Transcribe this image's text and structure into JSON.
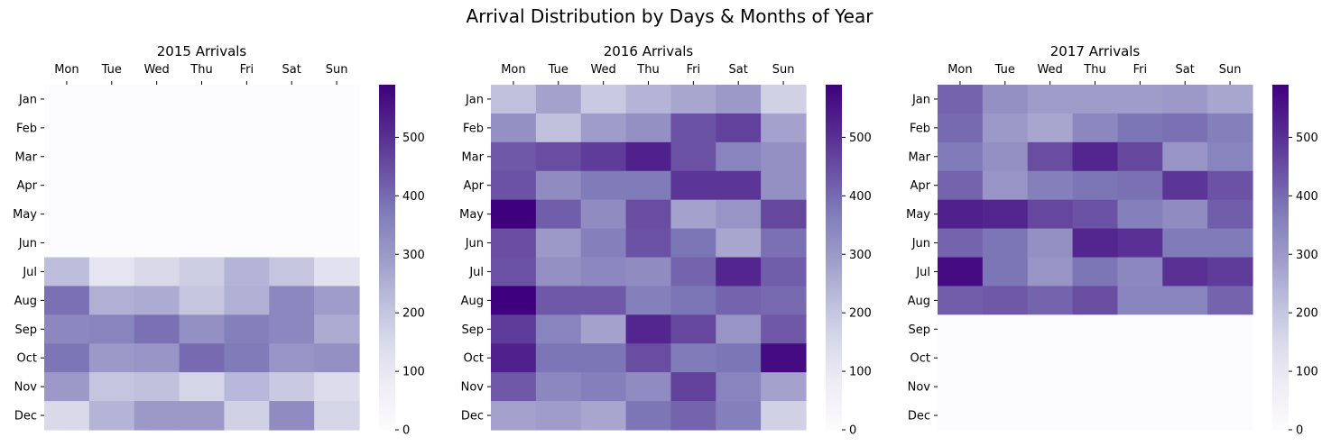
{
  "figure": {
    "suptitle": "Arrival Distribution by Days & Months of Year"
  },
  "colors": {
    "colormap": "Purples",
    "cmap_low": "#fcfbfd",
    "cmap_high": "#3f007d"
  },
  "chart_data": [
    {
      "type": "heatmap",
      "title": "2015 Arrivals",
      "x_categories": [
        "Mon",
        "Tue",
        "Wed",
        "Thu",
        "Fri",
        "Sat",
        "Sun"
      ],
      "y_categories": [
        "Jan",
        "Feb",
        "Mar",
        "Apr",
        "May",
        "Jun",
        "Jul",
        "Aug",
        "Sep",
        "Oct",
        "Nov",
        "Dec"
      ],
      "values": [
        [
          0,
          0,
          0,
          0,
          0,
          0,
          0
        ],
        [
          0,
          0,
          0,
          0,
          0,
          0,
          0
        ],
        [
          0,
          0,
          0,
          0,
          0,
          0,
          0
        ],
        [
          0,
          0,
          0,
          0,
          0,
          0,
          0
        ],
        [
          0,
          0,
          0,
          0,
          0,
          0,
          0
        ],
        [
          0,
          0,
          0,
          0,
          0,
          0,
          0
        ],
        [
          220,
          110,
          150,
          180,
          240,
          200,
          120
        ],
        [
          390,
          250,
          260,
          200,
          250,
          340,
          290
        ],
        [
          340,
          350,
          390,
          320,
          360,
          340,
          260
        ],
        [
          380,
          300,
          310,
          400,
          370,
          310,
          320
        ],
        [
          300,
          200,
          210,
          160,
          230,
          190,
          140
        ],
        [
          150,
          240,
          300,
          300,
          170,
          330,
          160
        ]
      ],
      "colorbar": {
        "min": 0,
        "max": 590,
        "ticks": [
          0,
          100,
          200,
          300,
          400,
          500
        ]
      }
    },
    {
      "type": "heatmap",
      "title": "2016 Arrivals",
      "x_categories": [
        "Mon",
        "Tue",
        "Wed",
        "Thu",
        "Fri",
        "Sat",
        "Sun"
      ],
      "y_categories": [
        "Jan",
        "Feb",
        "Mar",
        "Apr",
        "May",
        "Jun",
        "Jul",
        "Aug",
        "Sep",
        "Oct",
        "Nov",
        "Dec"
      ],
      "values": [
        [
          210,
          280,
          190,
          240,
          270,
          300,
          170
        ],
        [
          320,
          210,
          290,
          320,
          440,
          470,
          280
        ],
        [
          430,
          450,
          480,
          530,
          440,
          350,
          320
        ],
        [
          440,
          330,
          370,
          370,
          490,
          490,
          320
        ],
        [
          590,
          420,
          330,
          450,
          280,
          310,
          460
        ],
        [
          450,
          300,
          360,
          440,
          380,
          270,
          390
        ],
        [
          440,
          320,
          340,
          330,
          410,
          520,
          420
        ],
        [
          590,
          430,
          430,
          360,
          380,
          410,
          400
        ],
        [
          480,
          350,
          280,
          520,
          460,
          310,
          430
        ],
        [
          530,
          380,
          380,
          450,
          370,
          380,
          570
        ],
        [
          430,
          340,
          360,
          330,
          470,
          350,
          280
        ],
        [
          280,
          290,
          270,
          380,
          410,
          360,
          170
        ]
      ],
      "colorbar": {
        "min": 0,
        "max": 590,
        "ticks": [
          0,
          100,
          200,
          300,
          400,
          500
        ]
      }
    },
    {
      "type": "heatmap",
      "title": "2017 Arrivals",
      "x_categories": [
        "Mon",
        "Tue",
        "Wed",
        "Thu",
        "Fri",
        "Sat",
        "Sun"
      ],
      "y_categories": [
        "Jan",
        "Feb",
        "Mar",
        "Apr",
        "May",
        "Jun",
        "Jul",
        "Aug",
        "Sep",
        "Oct",
        "Nov",
        "Dec"
      ],
      "values": [
        [
          410,
          320,
          290,
          290,
          290,
          300,
          270
        ],
        [
          400,
          300,
          270,
          340,
          380,
          390,
          360
        ],
        [
          370,
          320,
          450,
          520,
          460,
          310,
          350
        ],
        [
          410,
          310,
          360,
          380,
          390,
          490,
          440
        ],
        [
          530,
          520,
          460,
          440,
          360,
          330,
          420
        ],
        [
          410,
          380,
          320,
          520,
          500,
          370,
          370
        ],
        [
          570,
          380,
          310,
          380,
          340,
          500,
          480
        ],
        [
          420,
          430,
          410,
          450,
          350,
          350,
          410
        ],
        [
          0,
          0,
          0,
          0,
          0,
          0,
          0
        ],
        [
          0,
          0,
          0,
          0,
          0,
          0,
          0
        ],
        [
          0,
          0,
          0,
          0,
          0,
          0,
          0
        ],
        [
          0,
          0,
          0,
          0,
          0,
          0,
          0
        ]
      ],
      "colorbar": {
        "min": 0,
        "max": 590,
        "ticks": [
          0,
          100,
          200,
          300,
          400,
          500
        ]
      }
    }
  ]
}
